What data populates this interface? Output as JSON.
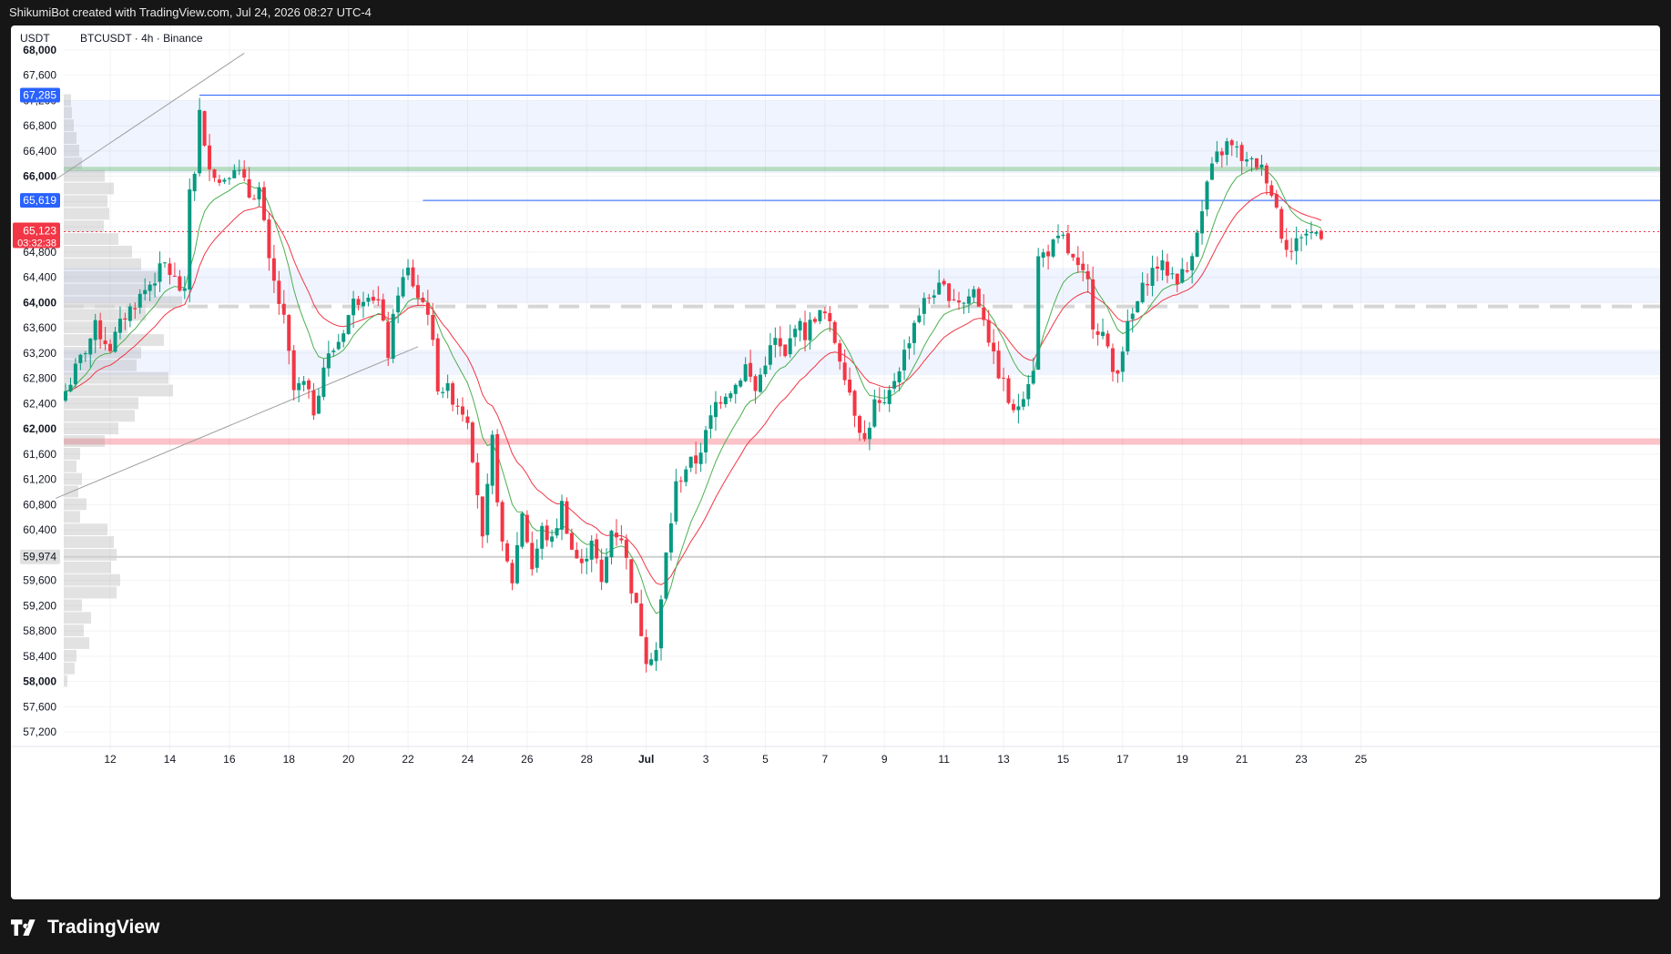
{
  "header": {
    "caption": "ShikumiBot created with TradingView.com, Jul 24, 2026 08:27 UTC-4"
  },
  "legend": {
    "currency": "USDT",
    "symbol": "BTCUSDT · 4h · Binance"
  },
  "brand": {
    "name": "TradingView",
    "logo_icon": "tradingview-logo-icon"
  },
  "colors": {
    "up": "#089981",
    "down": "#f23645",
    "ema_fast": "#f23645",
    "ema_slow": "#4caf50",
    "level_line": "#2962ff",
    "support_zone": "#f7bec3",
    "resistance_zone": "#c8e6c9",
    "poc": "#cfcfcf"
  },
  "chart_data": {
    "type": "candlestick",
    "timeframe": "4h",
    "y_axis": {
      "ylim": [
        57000,
        68100
      ],
      "ticks": [
        {
          "value": 68000,
          "label": "68,000",
          "bold": true
        },
        {
          "value": 67600,
          "label": "67,600"
        },
        {
          "value": 67200,
          "label": "67,200"
        },
        {
          "value": 66800,
          "label": "66,800"
        },
        {
          "value": 66400,
          "label": "66,400"
        },
        {
          "value": 66000,
          "label": "66,000",
          "bold": true
        },
        {
          "value": 65600,
          "label": "65,600"
        },
        {
          "value": 65200,
          "label": "65,200"
        },
        {
          "value": 64800,
          "label": "64,800"
        },
        {
          "value": 64400,
          "label": "64,400"
        },
        {
          "value": 64000,
          "label": "64,000",
          "bold": true
        },
        {
          "value": 63600,
          "label": "63,600"
        },
        {
          "value": 63200,
          "label": "63,200"
        },
        {
          "value": 62800,
          "label": "62,800"
        },
        {
          "value": 62400,
          "label": "62,400"
        },
        {
          "value": 62000,
          "label": "62,000",
          "bold": true
        },
        {
          "value": 61600,
          "label": "61,600"
        },
        {
          "value": 61200,
          "label": "61,200"
        },
        {
          "value": 60800,
          "label": "60,800"
        },
        {
          "value": 60400,
          "label": "60,400"
        },
        {
          "value": 59600,
          "label": "59,600"
        },
        {
          "value": 59200,
          "label": "59,200"
        },
        {
          "value": 58800,
          "label": "58,800"
        },
        {
          "value": 58400,
          "label": "58,400"
        },
        {
          "value": 58000,
          "label": "58,000",
          "bold": true
        },
        {
          "value": 57600,
          "label": "57,600"
        },
        {
          "value": 57200,
          "label": "57,200"
        }
      ]
    },
    "x_axis": {
      "start": "Jun 10 20:00",
      "bars": 258,
      "ticks": [
        {
          "bar": 9,
          "label": "12"
        },
        {
          "bar": 21,
          "label": "14"
        },
        {
          "bar": 33,
          "label": "16"
        },
        {
          "bar": 45,
          "label": "18"
        },
        {
          "bar": 57,
          "label": "20"
        },
        {
          "bar": 69,
          "label": "22"
        },
        {
          "bar": 81,
          "label": "24"
        },
        {
          "bar": 93,
          "label": "26"
        },
        {
          "bar": 105,
          "label": "28"
        },
        {
          "bar": 117,
          "label": "Jul",
          "bold": true
        },
        {
          "bar": 129,
          "label": "3"
        },
        {
          "bar": 141,
          "label": "5"
        },
        {
          "bar": 153,
          "label": "7"
        },
        {
          "bar": 165,
          "label": "9"
        },
        {
          "bar": 177,
          "label": "11"
        },
        {
          "bar": 189,
          "label": "13"
        },
        {
          "bar": 201,
          "label": "15"
        },
        {
          "bar": 213,
          "label": "17"
        },
        {
          "bar": 225,
          "label": "19"
        },
        {
          "bar": 237,
          "label": "21"
        },
        {
          "bar": 249,
          "label": "23"
        },
        {
          "bar": 261,
          "label": "25"
        }
      ]
    },
    "anchors": [
      [
        0,
        62600
      ],
      [
        3,
        63100
      ],
      [
        6,
        63600
      ],
      [
        9,
        63300
      ],
      [
        12,
        63800
      ],
      [
        16,
        64200
      ],
      [
        20,
        64600
      ],
      [
        24,
        64100
      ],
      [
        25,
        65800
      ],
      [
        26,
        66100
      ],
      [
        27,
        67000
      ],
      [
        28,
        66400
      ],
      [
        31,
        65900
      ],
      [
        34,
        66200
      ],
      [
        37,
        65700
      ],
      [
        39,
        65800
      ],
      [
        41,
        64600
      ],
      [
        42,
        64300
      ],
      [
        44,
        63700
      ],
      [
        46,
        62600
      ],
      [
        48,
        62700
      ],
      [
        50,
        62300
      ],
      [
        52,
        63000
      ],
      [
        55,
        63400
      ],
      [
        58,
        64000
      ],
      [
        61,
        64200
      ],
      [
        63,
        64000
      ],
      [
        65,
        63200
      ],
      [
        67,
        64200
      ],
      [
        69,
        64500
      ],
      [
        71,
        64100
      ],
      [
        73,
        63900
      ],
      [
        75,
        62700
      ],
      [
        77,
        62600
      ],
      [
        79,
        62400
      ],
      [
        81,
        62200
      ],
      [
        83,
        61000
      ],
      [
        84,
        60200
      ],
      [
        86,
        61800
      ],
      [
        88,
        60100
      ],
      [
        90,
        59600
      ],
      [
        92,
        60700
      ],
      [
        94,
        59800
      ],
      [
        96,
        60400
      ],
      [
        98,
        60200
      ],
      [
        100,
        60800
      ],
      [
        102,
        60100
      ],
      [
        104,
        59800
      ],
      [
        106,
        60300
      ],
      [
        108,
        59500
      ],
      [
        110,
        60400
      ],
      [
        112,
        60300
      ],
      [
        114,
        59500
      ],
      [
        116,
        58800
      ],
      [
        117,
        58400
      ],
      [
        119,
        58500
      ],
      [
        121,
        60000
      ],
      [
        123,
        61100
      ],
      [
        125,
        61400
      ],
      [
        127,
        61500
      ],
      [
        129,
        61900
      ],
      [
        131,
        62400
      ],
      [
        133,
        62600
      ],
      [
        135,
        62700
      ],
      [
        137,
        63000
      ],
      [
        139,
        62600
      ],
      [
        141,
        63100
      ],
      [
        143,
        63400
      ],
      [
        145,
        63100
      ],
      [
        147,
        63700
      ],
      [
        149,
        63500
      ],
      [
        151,
        63800
      ],
      [
        153,
        63800
      ],
      [
        155,
        63400
      ],
      [
        157,
        62900
      ],
      [
        159,
        62300
      ],
      [
        161,
        61800
      ],
      [
        163,
        62400
      ],
      [
        165,
        62300
      ],
      [
        167,
        62800
      ],
      [
        169,
        63200
      ],
      [
        171,
        63700
      ],
      [
        173,
        64000
      ],
      [
        175,
        64200
      ],
      [
        177,
        64200
      ],
      [
        179,
        64100
      ],
      [
        181,
        64000
      ],
      [
        183,
        64200
      ],
      [
        185,
        63800
      ],
      [
        187,
        63100
      ],
      [
        189,
        62700
      ],
      [
        191,
        62200
      ],
      [
        193,
        62600
      ],
      [
        195,
        63000
      ],
      [
        196,
        64700
      ],
      [
        199,
        64900
      ],
      [
        201,
        65000
      ],
      [
        202,
        64800
      ],
      [
        204,
        64500
      ],
      [
        206,
        64300
      ],
      [
        207,
        63700
      ],
      [
        209,
        63500
      ],
      [
        211,
        62900
      ],
      [
        212,
        63000
      ],
      [
        214,
        63600
      ],
      [
        216,
        64000
      ],
      [
        218,
        64400
      ],
      [
        220,
        64600
      ],
      [
        222,
        64500
      ],
      [
        224,
        64400
      ],
      [
        226,
        64500
      ],
      [
        228,
        65200
      ],
      [
        229,
        65400
      ],
      [
        230,
        65900
      ],
      [
        232,
        66300
      ],
      [
        234,
        66500
      ],
      [
        236,
        66400
      ],
      [
        238,
        66200
      ],
      [
        240,
        66200
      ],
      [
        242,
        66000
      ],
      [
        244,
        65500
      ],
      [
        245,
        65100
      ],
      [
        247,
        64800
      ],
      [
        249,
        65100
      ],
      [
        251,
        65100
      ],
      [
        253,
        65123
      ]
    ],
    "ema_fast_period": 20,
    "ema_slow_period": 10,
    "horizontal_levels": [
      {
        "price": 67285,
        "label": "67,285",
        "from_bar": 27,
        "style": "blue-line"
      },
      {
        "price": 65619,
        "label": "65,619",
        "from_bar": 72,
        "style": "blue-line"
      },
      {
        "price": 59974,
        "label": "59,974",
        "style": "gray-line"
      },
      {
        "price": 63940,
        "style": "dashed-gray"
      }
    ],
    "zones": [
      {
        "from": 66050,
        "to": 67200,
        "color": "blue"
      },
      {
        "from": 64000,
        "to": 64550,
        "color": "blue"
      },
      {
        "from": 62850,
        "to": 63250,
        "color": "blue"
      },
      {
        "from": 61750,
        "to": 61850,
        "color": "red"
      },
      {
        "from": 66080,
        "to": 66150,
        "color": "green"
      }
    ],
    "trendlines": [
      {
        "from": [
          -2,
          65950
        ],
        "to": [
          36,
          67950
        ]
      },
      {
        "from": [
          -2,
          60900
        ],
        "to": [
          71,
          63300
        ]
      }
    ],
    "volume_profile": [
      {
        "price": 67200,
        "width": 8
      },
      {
        "price": 67000,
        "width": 9
      },
      {
        "price": 66800,
        "width": 11
      },
      {
        "price": 66600,
        "width": 14
      },
      {
        "price": 66400,
        "width": 17
      },
      {
        "price": 66200,
        "width": 20
      },
      {
        "price": 66000,
        "width": 45
      },
      {
        "price": 65800,
        "width": 55
      },
      {
        "price": 65600,
        "width": 48
      },
      {
        "price": 65400,
        "width": 50
      },
      {
        "price": 65200,
        "width": 44
      },
      {
        "price": 65000,
        "width": 60
      },
      {
        "price": 64800,
        "width": 75
      },
      {
        "price": 64600,
        "width": 85
      },
      {
        "price": 64400,
        "width": 106
      },
      {
        "price": 64200,
        "width": 100
      },
      {
        "price": 64000,
        "width": 130
      },
      {
        "price": 63800,
        "width": 90
      },
      {
        "price": 63600,
        "width": 70
      },
      {
        "price": 63400,
        "width": 110
      },
      {
        "price": 63200,
        "width": 85
      },
      {
        "price": 63000,
        "width": 80
      },
      {
        "price": 62800,
        "width": 115
      },
      {
        "price": 62600,
        "width": 120
      },
      {
        "price": 62400,
        "width": 82
      },
      {
        "price": 62200,
        "width": 78
      },
      {
        "price": 62000,
        "width": 60
      },
      {
        "price": 61800,
        "width": 45
      },
      {
        "price": 61600,
        "width": 18
      },
      {
        "price": 61400,
        "width": 14
      },
      {
        "price": 61200,
        "width": 20
      },
      {
        "price": 61000,
        "width": 16
      },
      {
        "price": 60800,
        "width": 25
      },
      {
        "price": 60600,
        "width": 18
      },
      {
        "price": 60400,
        "width": 48
      },
      {
        "price": 60200,
        "width": 55
      },
      {
        "price": 60000,
        "width": 58
      },
      {
        "price": 59800,
        "width": 52
      },
      {
        "price": 59600,
        "width": 62
      },
      {
        "price": 59400,
        "width": 58
      },
      {
        "price": 59200,
        "width": 20
      },
      {
        "price": 59000,
        "width": 30
      },
      {
        "price": 58800,
        "width": 22
      },
      {
        "price": 58600,
        "width": 28
      },
      {
        "price": 58400,
        "width": 14
      },
      {
        "price": 58200,
        "width": 12
      },
      {
        "price": 58000,
        "width": 4
      }
    ],
    "last_price": {
      "price": 65123,
      "label": "65,123",
      "countdown": "03:32:38"
    }
  }
}
